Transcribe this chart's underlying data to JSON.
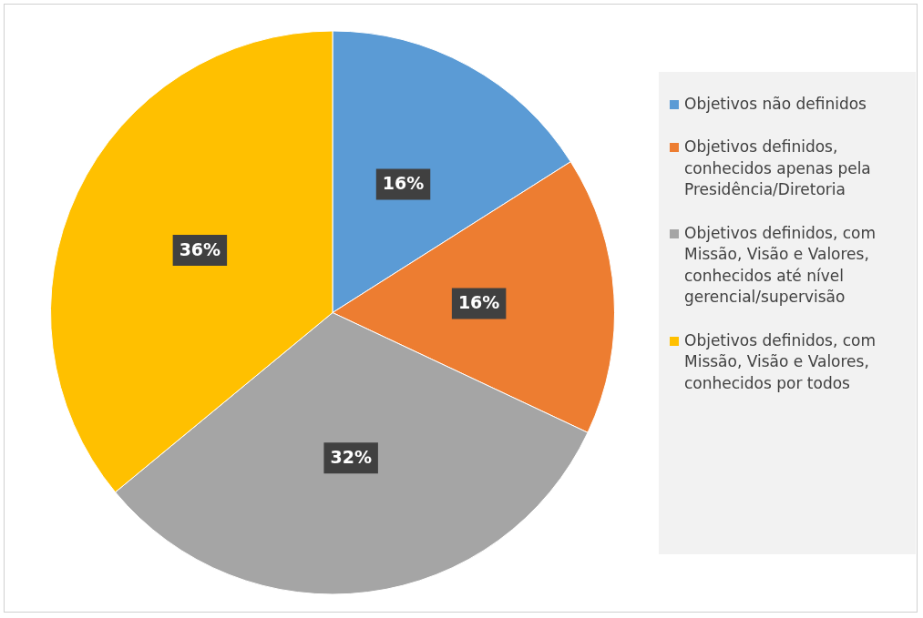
{
  "chart_data": {
    "type": "pie",
    "categories": [
      "Objetivos não definidos",
      "Objetivos definidos, conhecidos apenas pela Presidência/Diretoria",
      "Objetivos definidos, com Missão, Visão e Valores, conhecidos até nível gerencial/supervisão",
      "Objetivos definidos, com Missão, Visão e Valores, conhecidos por todos"
    ],
    "values": [
      16,
      16,
      32,
      36
    ],
    "colors": [
      "#5b9bd5",
      "#ed7d31",
      "#a5a5a5",
      "#ffc000"
    ],
    "value_labels": [
      "16%",
      "16%",
      "32%",
      "36%"
    ],
    "legend": "right"
  }
}
